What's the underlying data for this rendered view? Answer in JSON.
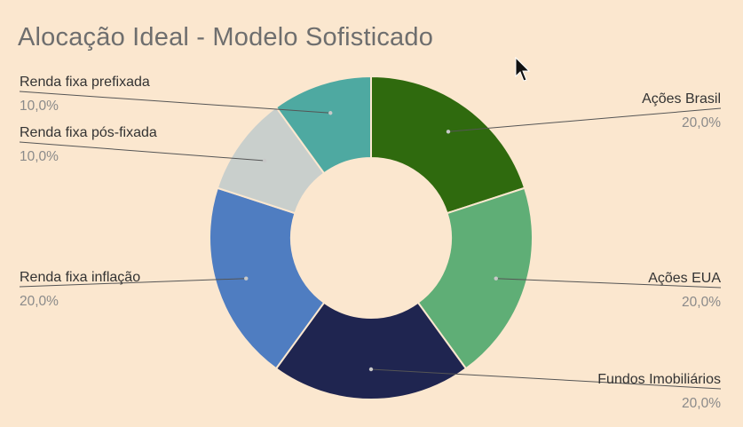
{
  "title": "Alocação Ideal - Modelo Sofisticado",
  "chart_data": {
    "type": "pie",
    "donut": true,
    "title": "Alocação Ideal - Modelo Sofisticado",
    "legend": "none",
    "slices": [
      {
        "label": "Ações Brasil",
        "value": 20.0,
        "value_text": "20,0%",
        "color": "#2f6a0e"
      },
      {
        "label": "Ações EUA",
        "value": 20.0,
        "value_text": "20,0%",
        "color": "#5fae76"
      },
      {
        "label": "Fundos Imobiliários",
        "value": 20.0,
        "value_text": "20,0%",
        "color": "#1f2550"
      },
      {
        "label": "Renda fixa inflação",
        "value": 20.0,
        "value_text": "20,0%",
        "color": "#4f7dc1"
      },
      {
        "label": "Renda fixa pós-fixada",
        "value": 10.0,
        "value_text": "10,0%",
        "color": "#c9cfcc"
      },
      {
        "label": "Renda fixa prefixada",
        "value": 10.0,
        "value_text": "10,0%",
        "color": "#4ea9a1"
      }
    ]
  }
}
